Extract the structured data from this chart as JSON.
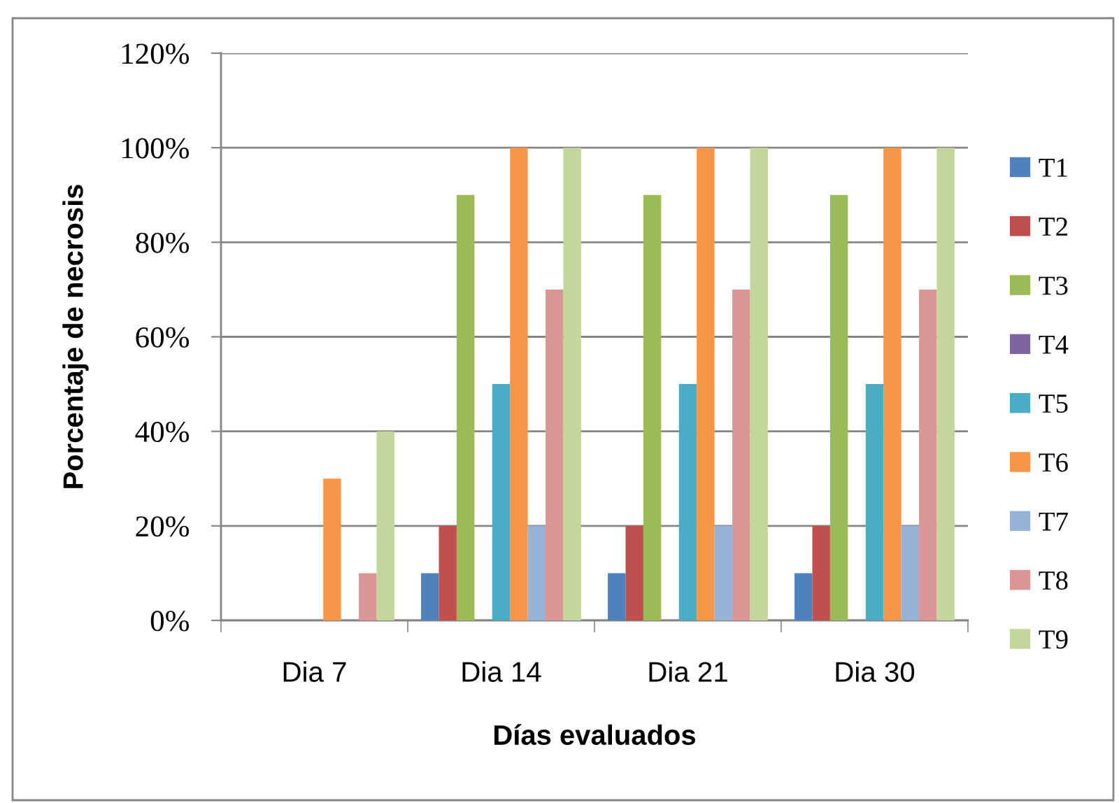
{
  "chart_data": {
    "type": "bar",
    "xlabel": "Días evaluados",
    "ylabel": "Porcentaje de necrosis",
    "categories": [
      "Dia 7",
      "Dia 14",
      "Dia 21",
      "Dia 30"
    ],
    "ylim": [
      0,
      120
    ],
    "yticks": [
      {
        "value": 0,
        "label": "0%"
      },
      {
        "value": 20,
        "label": "20%"
      },
      {
        "value": 40,
        "label": "40%"
      },
      {
        "value": 60,
        "label": "60%"
      },
      {
        "value": 80,
        "label": "80%"
      },
      {
        "value": 100,
        "label": "100%"
      },
      {
        "value": 120,
        "label": "120%"
      }
    ],
    "grid": "y",
    "legend": "right",
    "series": [
      {
        "name": "T1",
        "color": "#4f81bd",
        "values": [
          0,
          10,
          10,
          10
        ]
      },
      {
        "name": "T2",
        "color": "#c0504d",
        "values": [
          0,
          20,
          20,
          20
        ]
      },
      {
        "name": "T3",
        "color": "#9bbb59",
        "values": [
          0,
          90,
          90,
          90
        ]
      },
      {
        "name": "T4",
        "color": "#8064a2",
        "values": [
          0,
          0,
          0,
          0
        ]
      },
      {
        "name": "T5",
        "color": "#4bacc6",
        "values": [
          0,
          50,
          50,
          50
        ]
      },
      {
        "name": "T6",
        "color": "#f79646",
        "values": [
          30,
          100,
          100,
          100
        ]
      },
      {
        "name": "T7",
        "color": "#95b3d7",
        "values": [
          0,
          20,
          20,
          20
        ]
      },
      {
        "name": "T8",
        "color": "#d99694",
        "values": [
          10,
          70,
          70,
          70
        ]
      },
      {
        "name": "T9",
        "color": "#c3d69b",
        "values": [
          40,
          100,
          100,
          100
        ]
      }
    ]
  }
}
